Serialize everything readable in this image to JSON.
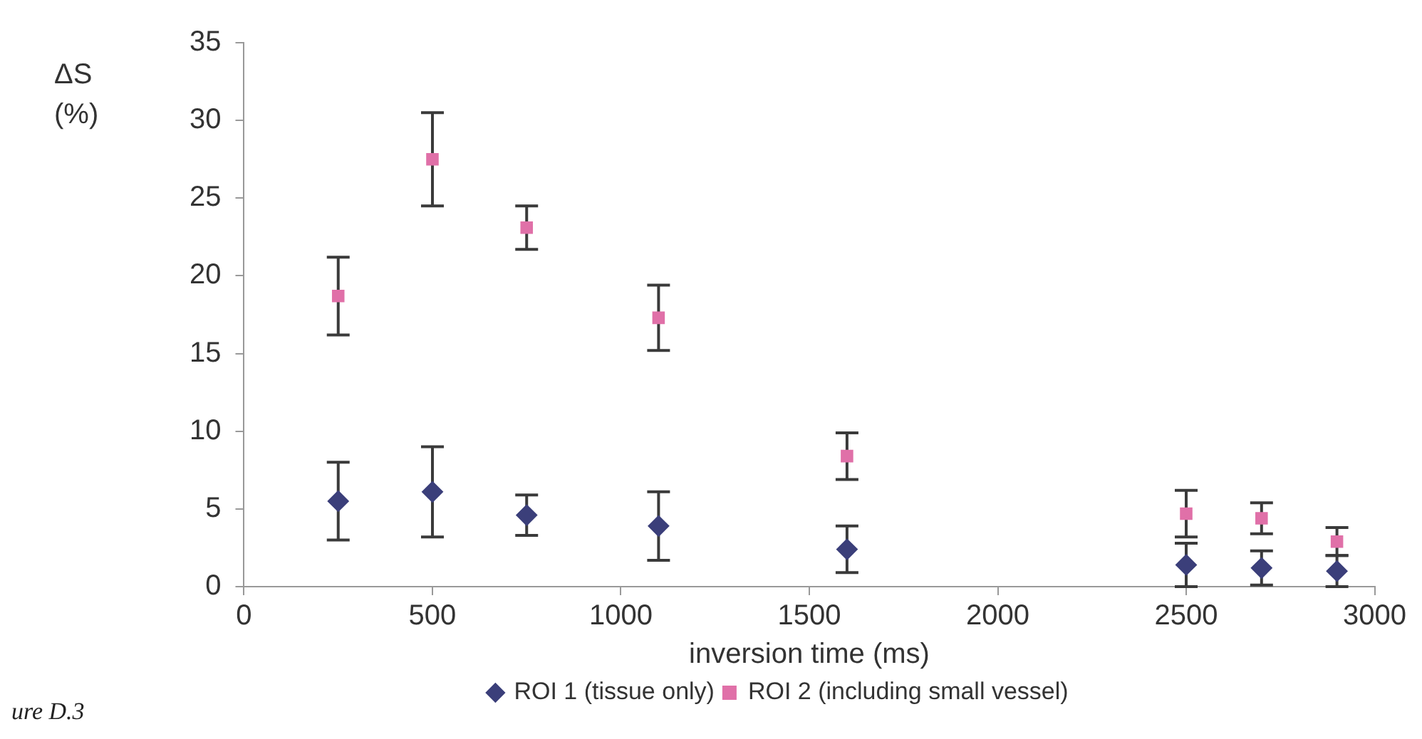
{
  "chart_data": {
    "type": "scatter",
    "xlabel": "inversion time (ms)",
    "ylabel": "ΔS (%)",
    "x": [
      250,
      500,
      750,
      1100,
      1600,
      2500,
      2700,
      2900
    ],
    "series": [
      {
        "name": "ROI 1 (tissue only)",
        "color": "#3b3f7a",
        "marker": "diamond",
        "values": [
          5.5,
          6.1,
          4.6,
          3.9,
          2.4,
          1.4,
          1.2,
          1.0
        ],
        "errors": [
          2.5,
          2.9,
          1.3,
          2.2,
          1.5,
          1.4,
          1.1,
          1.0
        ]
      },
      {
        "name": "ROI 2 (including small vessel)",
        "color": "#e070a8",
        "marker": "square",
        "values": [
          18.7,
          27.5,
          23.1,
          17.3,
          8.4,
          4.7,
          4.4,
          2.9
        ],
        "errors": [
          2.5,
          3.0,
          1.4,
          2.1,
          1.5,
          1.5,
          1.0,
          0.9
        ]
      }
    ],
    "xlim": [
      0,
      3000
    ],
    "xticks": [
      0,
      500,
      1000,
      1500,
      2000,
      2500,
      3000
    ],
    "ylim": [
      0,
      35
    ],
    "yticks": [
      0,
      5,
      10,
      15,
      20,
      25,
      30,
      35
    ],
    "grid": false,
    "legend": "bottom",
    "annotations": [
      "ure D.3"
    ]
  }
}
